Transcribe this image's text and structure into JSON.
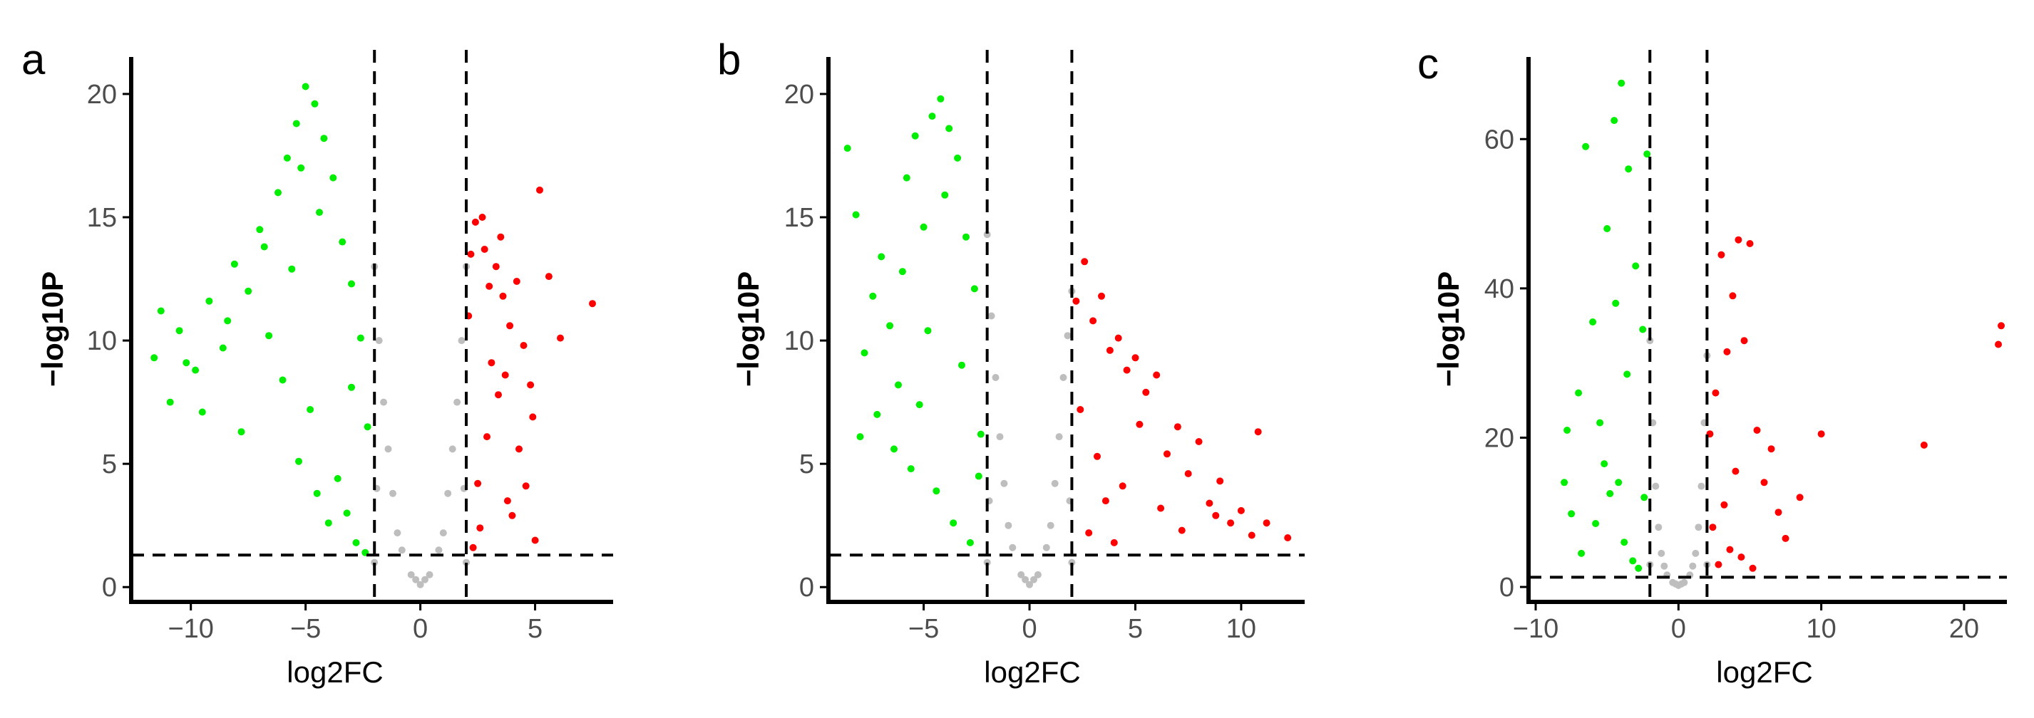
{
  "chart_data": [
    {
      "panel": "a",
      "type": "scatter",
      "title": "",
      "xlabel": "log2FC",
      "ylabel": "−log10P",
      "xlim": [
        -12.6,
        8.4
      ],
      "ylim": [
        -0.6,
        21.5
      ],
      "xticks": [
        -10,
        -5,
        0,
        5
      ],
      "xtick_labels": [
        "−10",
        "−5",
        "0",
        "5"
      ],
      "yticks": [
        0,
        5,
        10,
        15,
        20
      ],
      "ytick_labels": [
        "0",
        "5",
        "10",
        "15",
        "20"
      ],
      "grid": false,
      "legend": "none",
      "thresholds": {
        "x": [
          -2,
          2
        ],
        "y": 1.3
      },
      "series": [
        {
          "name": "",
          "color": "#00EE00",
          "x": [
            -11.6,
            -11.3,
            -10.9,
            -10.5,
            -9.8,
            -9.2,
            -8.6,
            -8.1,
            -7.5,
            -7.0,
            -6.6,
            -6.2,
            -5.8,
            -5.4,
            -5.0,
            -4.6,
            -4.2,
            -3.8,
            -3.4,
            -3.0,
            -2.6,
            -2.3,
            -4.8,
            -5.3,
            -4.5,
            -6.0,
            -7.8,
            -9.5,
            -3.2,
            -2.8,
            -4.0,
            -3.6,
            -5.6,
            -6.8,
            -8.4,
            -10.2,
            -2.4,
            -3.0,
            -4.4,
            -5.2
          ],
          "y": [
            9.3,
            11.2,
            7.5,
            10.4,
            8.8,
            11.6,
            9.7,
            13.1,
            12.0,
            14.5,
            10.2,
            16.0,
            17.4,
            18.8,
            20.3,
            19.6,
            18.2,
            16.6,
            14.0,
            12.3,
            10.1,
            6.5,
            7.2,
            5.1,
            3.8,
            8.4,
            6.3,
            7.1,
            3.0,
            1.8,
            2.6,
            4.4,
            12.9,
            13.8,
            10.8,
            9.1,
            1.4,
            8.1,
            15.2,
            17.0
          ]
        },
        {
          "name": "",
          "color": "#FF0000",
          "x": [
            2.2,
            2.4,
            2.7,
            3.0,
            3.3,
            3.6,
            3.9,
            4.2,
            4.5,
            4.8,
            5.2,
            5.6,
            6.1,
            7.5,
            2.5,
            2.9,
            3.4,
            3.8,
            4.3,
            4.9,
            2.3,
            2.6,
            3.1,
            3.7,
            4.0,
            4.6,
            5.0,
            2.1,
            2.8,
            3.5
          ],
          "y": [
            13.5,
            14.8,
            15.0,
            12.2,
            13.0,
            11.8,
            10.6,
            12.4,
            9.8,
            8.2,
            16.1,
            12.6,
            10.1,
            11.5,
            4.2,
            6.1,
            7.8,
            3.5,
            5.6,
            6.9,
            1.6,
            2.4,
            9.1,
            8.6,
            2.9,
            4.1,
            1.9,
            11.0,
            13.7,
            14.2
          ]
        },
        {
          "name": "",
          "color": "#BEBEBE",
          "x": [
            -2.0,
            -1.6,
            -1.2,
            -0.8,
            -0.4,
            0.0,
            0.4,
            0.8,
            1.2,
            1.6,
            2.0,
            -1.8,
            -1.4,
            1.4,
            1.8,
            -0.2,
            0.2,
            -1.0,
            1.0,
            -2.0,
            2.0,
            -1.9,
            1.9
          ],
          "y": [
            13.0,
            7.5,
            3.8,
            1.5,
            0.5,
            0.1,
            0.5,
            1.5,
            3.8,
            7.5,
            13.0,
            10.0,
            5.6,
            5.6,
            10.0,
            0.3,
            0.3,
            2.2,
            2.2,
            1.0,
            1.0,
            4.0,
            4.0
          ]
        }
      ]
    },
    {
      "panel": "b",
      "type": "scatter",
      "title": "",
      "xlabel": "log2FC",
      "ylabel": "−log10P",
      "xlim": [
        -9.5,
        13.0
      ],
      "ylim": [
        -0.6,
        21.5
      ],
      "xticks": [
        -5,
        0,
        5,
        10
      ],
      "xtick_labels": [
        "−5",
        "0",
        "5",
        "10"
      ],
      "yticks": [
        0,
        5,
        10,
        15,
        20
      ],
      "ytick_labels": [
        "0",
        "5",
        "10",
        "15",
        "20"
      ],
      "grid": false,
      "legend": "none",
      "thresholds": {
        "x": [
          -2,
          2
        ],
        "y": 1.3
      },
      "series": [
        {
          "name": "",
          "color": "#00EE00",
          "x": [
            -8.6,
            -8.2,
            -7.8,
            -7.4,
            -7.0,
            -6.6,
            -6.2,
            -5.8,
            -5.4,
            -5.0,
            -4.6,
            -4.2,
            -3.8,
            -3.4,
            -3.0,
            -2.6,
            -2.3,
            -6.4,
            -5.2,
            -4.4,
            -3.6,
            -2.8,
            -7.2,
            -8.0,
            -6.0,
            -4.8,
            -3.2,
            -2.4,
            -5.6,
            -4.0
          ],
          "y": [
            17.8,
            15.1,
            9.5,
            11.8,
            13.4,
            10.6,
            8.2,
            16.6,
            18.3,
            14.6,
            19.1,
            19.8,
            18.6,
            17.4,
            14.2,
            12.1,
            6.2,
            5.6,
            7.4,
            3.9,
            2.6,
            1.8,
            7.0,
            6.1,
            12.8,
            10.4,
            9.0,
            4.5,
            4.8,
            15.9
          ]
        },
        {
          "name": "",
          "color": "#FF0000",
          "x": [
            2.2,
            2.6,
            3.0,
            3.4,
            3.8,
            4.2,
            4.6,
            5.0,
            5.5,
            6.0,
            6.5,
            7.0,
            7.5,
            8.0,
            8.5,
            9.0,
            9.5,
            10.0,
            10.5,
            11.2,
            12.2,
            2.8,
            3.6,
            4.4,
            5.2,
            6.2,
            7.2,
            2.4,
            3.2,
            4.0,
            8.8,
            10.8
          ],
          "y": [
            11.6,
            13.2,
            10.8,
            11.8,
            9.6,
            10.1,
            8.8,
            9.3,
            7.9,
            8.6,
            5.4,
            6.5,
            4.6,
            5.9,
            3.4,
            4.3,
            2.6,
            3.1,
            2.1,
            2.6,
            2.0,
            2.2,
            3.5,
            4.1,
            6.6,
            3.2,
            2.3,
            7.2,
            5.3,
            1.8,
            2.9,
            6.3
          ]
        },
        {
          "name": "",
          "color": "#BEBEBE",
          "x": [
            -2.0,
            -1.6,
            -1.2,
            -0.8,
            -0.4,
            0.0,
            0.4,
            0.8,
            1.2,
            1.6,
            2.0,
            -1.8,
            -1.4,
            1.4,
            1.8,
            -0.2,
            0.2,
            -1.0,
            1.0,
            -2.0,
            2.0,
            -1.9,
            1.9
          ],
          "y": [
            14.3,
            8.5,
            4.2,
            1.6,
            0.5,
            0.1,
            0.5,
            1.6,
            4.2,
            8.5,
            12.0,
            11.0,
            6.1,
            6.1,
            10.2,
            0.3,
            0.3,
            2.5,
            2.5,
            1.0,
            1.0,
            3.5,
            3.5
          ]
        }
      ]
    },
    {
      "panel": "c",
      "type": "scatter",
      "title": "",
      "xlabel": "log2FC",
      "ylabel": "−log10P",
      "xlim": [
        -10.5,
        23.0
      ],
      "ylim": [
        -2.0,
        71.0
      ],
      "xticks": [
        -10,
        0,
        10,
        20
      ],
      "xtick_labels": [
        "−10",
        "0",
        "10",
        "20"
      ],
      "yticks": [
        0,
        20,
        40,
        60
      ],
      "ytick_labels": [
        "0",
        "20",
        "40",
        "60"
      ],
      "grid": false,
      "legend": "none",
      "thresholds": {
        "x": [
          -2,
          2
        ],
        "y": 1.3
      },
      "series": [
        {
          "name": "",
          "color": "#00EE00",
          "x": [
            -8.0,
            -7.5,
            -7.0,
            -6.5,
            -6.0,
            -5.5,
            -5.0,
            -4.5,
            -4.0,
            -3.5,
            -3.0,
            -2.5,
            -2.2,
            -4.2,
            -3.8,
            -3.2,
            -2.8,
            -6.8,
            -5.8,
            -4.8,
            -7.8,
            -3.6,
            -2.4,
            -5.2,
            -4.4
          ],
          "y": [
            14.0,
            9.8,
            26.0,
            59.0,
            35.5,
            22.0,
            48.0,
            62.5,
            67.5,
            56.0,
            43.0,
            34.5,
            58.0,
            14.0,
            6.0,
            3.5,
            2.5,
            4.5,
            8.5,
            12.5,
            21.0,
            28.5,
            12.0,
            16.5,
            38.0
          ]
        },
        {
          "name": "",
          "color": "#FF0000",
          "x": [
            2.2,
            2.6,
            3.0,
            3.4,
            3.8,
            4.2,
            4.6,
            5.0,
            5.5,
            6.0,
            6.5,
            7.0,
            7.5,
            8.5,
            10.0,
            17.2,
            22.4,
            22.6,
            2.8,
            3.6,
            4.4,
            5.2,
            2.4,
            3.2,
            4.0
          ],
          "y": [
            20.5,
            26.0,
            44.5,
            31.5,
            39.0,
            46.5,
            33.0,
            46.0,
            21.0,
            14.0,
            18.5,
            10.0,
            6.5,
            12.0,
            20.5,
            19.0,
            32.5,
            35.0,
            3.0,
            5.0,
            4.0,
            2.5,
            8.0,
            11.0,
            15.5
          ]
        },
        {
          "name": "",
          "color": "#BEBEBE",
          "x": [
            -2.0,
            -1.6,
            -1.2,
            -0.8,
            -0.4,
            0.0,
            0.4,
            0.8,
            1.2,
            1.6,
            2.0,
            -1.8,
            -1.4,
            1.4,
            1.8,
            -0.2,
            0.2,
            -1.0,
            1.0,
            -2.0,
            2.0
          ],
          "y": [
            33.0,
            13.5,
            4.5,
            1.6,
            0.6,
            0.2,
            0.6,
            1.6,
            4.5,
            13.5,
            31.0,
            22.0,
            8.0,
            8.0,
            22.0,
            0.4,
            0.4,
            2.8,
            2.8,
            3.0,
            3.0
          ]
        }
      ]
    }
  ]
}
